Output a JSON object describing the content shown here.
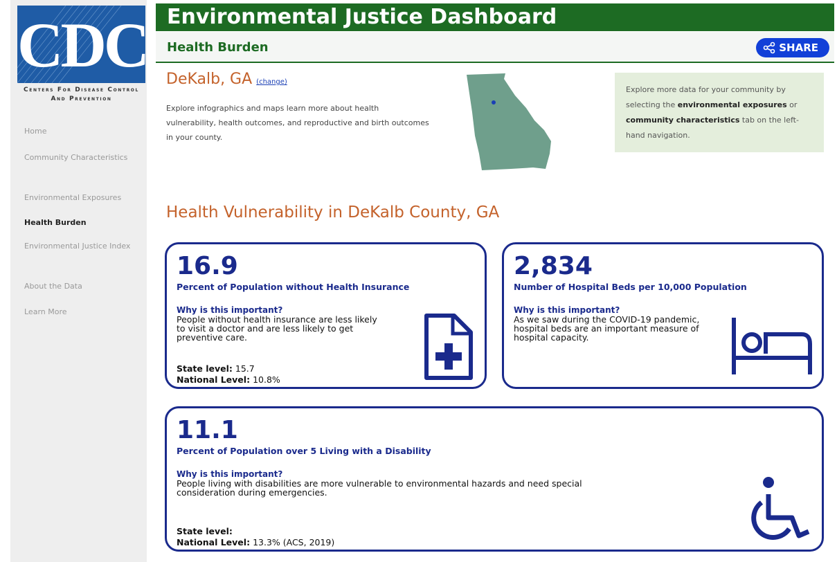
{
  "sidebar": {
    "logo_text": "CDC",
    "org_name": "Centers for Disease Control and Prevention",
    "nav": [
      "Home",
      "Community Characteristics",
      "Environmental Exposures",
      "Health Burden",
      "Environmental Justice Index",
      "About the Data",
      "Learn More"
    ],
    "active": "Health Burden"
  },
  "header": {
    "title": "Environmental Justice Dashboard",
    "subtitle": "Health Burden",
    "share": "SHARE"
  },
  "location": {
    "name": "DeKalb, GA",
    "change": "(change)",
    "description": "Explore infographics and maps learn more about health vulnerability, health outcomes, and reproductive and birth outcomes in your county."
  },
  "info_box": {
    "parts": [
      {
        "text": "Explore more data for your community by selecting the "
      },
      {
        "text": "environmental exposures",
        "bold": true
      },
      {
        "text": " or "
      },
      {
        "text": "community characteristics",
        "bold": true
      },
      {
        "text": " tab on the left-hand navigation."
      }
    ]
  },
  "section_title": "Health Vulnerability in DeKalb County, GA",
  "cards": [
    {
      "value": "16.9",
      "label": "Percent of Population without Health Insurance",
      "why": "Why is this important?",
      "description": "People without health insurance are less likely to visit a doctor and are less likely to get preventive care.",
      "state_label": "State level:",
      "state_value": "15.7",
      "national_label": "National Level:",
      "national_value": "10.8%"
    },
    {
      "value": "2,834",
      "label": "Number of Hospital Beds per 10,000 Population",
      "why": "Why is this important?",
      "description": "As we saw during the COVID-19 pandemic, hospital beds are an important measure of hospital capacity."
    },
    {
      "value": "11.1",
      "label": "Percent of Population over 5 Living with a Disability",
      "why": "Why is this important?",
      "description": "People living with disabilities are more vulnerable to environmental hazards and need special consideration during emergencies.",
      "state_label": "State level:",
      "national_label": "National Level:",
      "national_value": "13.3% (ACS, 2019)"
    }
  ]
}
